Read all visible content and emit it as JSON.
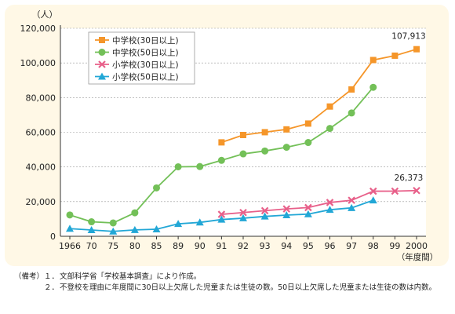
{
  "chart_data": {
    "type": "line",
    "unit_label": "（人）",
    "x_axis_unit": "（年度間）",
    "categories": [
      "1966",
      "70",
      "75",
      "80",
      "85",
      "89",
      "90",
      "91",
      "92",
      "93",
      "94",
      "95",
      "96",
      "97",
      "98",
      "99",
      "2000"
    ],
    "ylim": [
      0,
      120000
    ],
    "yticks": [
      "0",
      "20,000",
      "40,000",
      "60,000",
      "80,000",
      "100,000",
      "120,000"
    ],
    "ytick_values": [
      0,
      20000,
      40000,
      60000,
      80000,
      100000,
      120000
    ],
    "grid": true,
    "legend_position": "top-left",
    "series": [
      {
        "name": "中学校(30日以上)",
        "color": "#f5962a",
        "marker": "square",
        "values": [
          null,
          null,
          null,
          null,
          null,
          null,
          null,
          54172,
          58421,
          60039,
          61663,
          65022,
          74853,
          84701,
          101675,
          104180,
          107913
        ]
      },
      {
        "name": "中学校(50日以上)",
        "color": "#73c058",
        "marker": "circle",
        "values": [
          12286,
          8357,
          7704,
          13536,
          27926,
          40087,
          40223,
          43796,
          47526,
          49212,
          51365,
          54092,
          62228,
          71127,
          85942,
          null,
          null
        ]
      },
      {
        "name": "小学校(30日以上)",
        "color": "#e8608a",
        "marker": "x",
        "values": [
          null,
          null,
          null,
          null,
          null,
          null,
          null,
          12645,
          13710,
          14769,
          15786,
          16569,
          19498,
          20765,
          26017,
          26047,
          26373
        ]
      },
      {
        "name": "小学校(50日以上)",
        "color": "#22a7d6",
        "marker": "triangle",
        "values": [
          4430,
          3626,
          2830,
          3679,
          4071,
          7179,
          8014,
          9652,
          10449,
          11469,
          12240,
          12782,
          15314,
          16383,
          20765,
          null,
          null
        ]
      }
    ],
    "annotations": [
      {
        "text": "107,913",
        "series": 0,
        "index": 16
      },
      {
        "text": "26,373",
        "series": 2,
        "index": 16
      }
    ]
  },
  "notes": {
    "items": [
      {
        "prefix": "（備考）１．",
        "text": "文部科学省「学校基本調査」により作成。"
      },
      {
        "prefix": "　　　　２．",
        "text": "不登校を理由に年度間に30日以上欠席した児童または生徒の数。50日以上欠席した児童または生徒の数は内数。"
      }
    ]
  }
}
